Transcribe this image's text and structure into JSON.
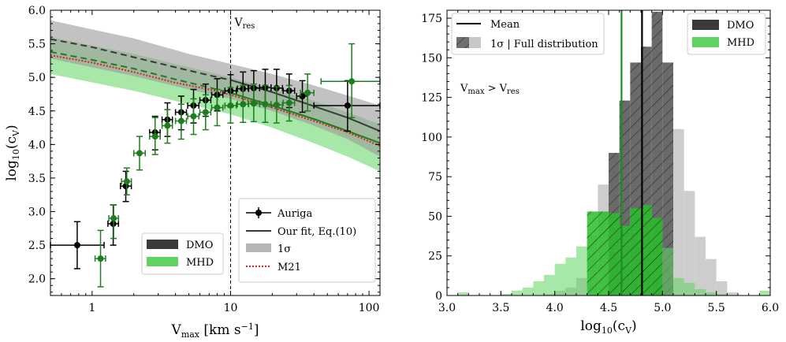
{
  "chart_data": [
    {
      "type": "scatter",
      "xscale": "log",
      "xlim": [
        0.5,
        120
      ],
      "ylim": [
        1.75,
        6.0
      ],
      "xlabel": "V_max [km s^-1]",
      "ylabel": "log10(cV)",
      "annotations": [
        {
          "text": "Vres",
          "x": 10
        }
      ],
      "xticks": [
        {
          "v": 1,
          "label": "1"
        },
        {
          "v": 10,
          "label": "10"
        },
        {
          "v": 100,
          "label": "100"
        }
      ],
      "yticks": [
        2.0,
        2.5,
        3.0,
        3.5,
        4.0,
        4.5,
        5.0,
        5.5,
        6.0
      ],
      "ytick_labels": [
        "2.0",
        "2.5",
        "3.0",
        "3.5",
        "4.0",
        "4.5",
        "5.0",
        "5.5",
        "6.0"
      ],
      "vres": 10,
      "colors": {
        "dmo": "#3a3a3a",
        "mhd": "#1e7d1e",
        "dmo_band": "#9a9a9a",
        "mhd_band": "#5fd35f",
        "m21": "#e02020"
      },
      "series": [
        {
          "name": "Auriga DMO",
          "color": "#000000",
          "points": [
            {
              "x": 0.78,
              "y": 2.5,
              "xlo": 0.5,
              "xhi": 1.22,
              "ylo": 2.15,
              "yhi": 2.85
            },
            {
              "x": 1.42,
              "y": 2.82,
              "xlo": 1.3,
              "xhi": 1.55,
              "ylo": 2.5,
              "yhi": 3.1
            },
            {
              "x": 1.75,
              "y": 3.38,
              "xlo": 1.6,
              "xhi": 1.92,
              "ylo": 3.15,
              "yhi": 3.6
            },
            {
              "x": 2.85,
              "y": 4.18,
              "xlo": 2.6,
              "xhi": 3.1,
              "ylo": 3.92,
              "yhi": 4.42
            },
            {
              "x": 3.5,
              "y": 4.37,
              "xlo": 3.2,
              "xhi": 3.8,
              "ylo": 4.12,
              "yhi": 4.62
            },
            {
              "x": 4.4,
              "y": 4.48,
              "xlo": 4.0,
              "xhi": 4.8,
              "ylo": 4.22,
              "yhi": 4.72
            },
            {
              "x": 5.4,
              "y": 4.58,
              "xlo": 4.9,
              "xhi": 5.9,
              "ylo": 4.32,
              "yhi": 4.82
            },
            {
              "x": 6.6,
              "y": 4.66,
              "xlo": 6.0,
              "xhi": 7.2,
              "ylo": 4.42,
              "yhi": 4.9
            },
            {
              "x": 8.0,
              "y": 4.74,
              "xlo": 7.3,
              "xhi": 8.8,
              "ylo": 4.5,
              "yhi": 4.98
            },
            {
              "x": 10.0,
              "y": 4.8,
              "xlo": 9.1,
              "xhi": 11.0,
              "ylo": 4.56,
              "yhi": 5.04
            },
            {
              "x": 12.3,
              "y": 4.83,
              "xlo": 11.2,
              "xhi": 13.5,
              "ylo": 4.6,
              "yhi": 5.08
            },
            {
              "x": 14.7,
              "y": 4.84,
              "xlo": 13.4,
              "xhi": 16.2,
              "ylo": 4.6,
              "yhi": 5.1
            },
            {
              "x": 17.8,
              "y": 4.85,
              "xlo": 16.2,
              "xhi": 19.6,
              "ylo": 4.6,
              "yhi": 5.12
            },
            {
              "x": 21.5,
              "y": 4.84,
              "xlo": 19.6,
              "xhi": 23.7,
              "ylo": 4.6,
              "yhi": 5.12
            },
            {
              "x": 26.5,
              "y": 4.8,
              "xlo": 24.0,
              "xhi": 29.0,
              "ylo": 4.55,
              "yhi": 5.05
            },
            {
              "x": 33.0,
              "y": 4.72,
              "xlo": 30.0,
              "xhi": 36.0,
              "ylo": 4.48,
              "yhi": 4.95
            },
            {
              "x": 70.0,
              "y": 4.58,
              "xlo": 40.0,
              "xhi": 120.0,
              "ylo": 4.2,
              "yhi": 4.95
            }
          ]
        },
        {
          "name": "Auriga MHD",
          "color": "#1e7d1e",
          "points": [
            {
              "x": 1.15,
              "y": 2.3,
              "xlo": 1.05,
              "xhi": 1.25,
              "ylo": 1.88,
              "yhi": 2.72
            },
            {
              "x": 1.43,
              "y": 2.9,
              "xlo": 1.32,
              "xhi": 1.55,
              "ylo": 2.6,
              "yhi": 3.1
            },
            {
              "x": 1.78,
              "y": 3.45,
              "xlo": 1.63,
              "xhi": 1.92,
              "ylo": 3.25,
              "yhi": 3.65
            },
            {
              "x": 2.2,
              "y": 3.87,
              "xlo": 2.0,
              "xhi": 2.42,
              "ylo": 3.62,
              "yhi": 4.12
            },
            {
              "x": 2.85,
              "y": 4.12,
              "xlo": 2.6,
              "xhi": 3.1,
              "ylo": 3.85,
              "yhi": 4.4
            },
            {
              "x": 3.5,
              "y": 4.28,
              "xlo": 3.2,
              "xhi": 3.8,
              "ylo": 4.02,
              "yhi": 4.52
            },
            {
              "x": 4.4,
              "y": 4.35,
              "xlo": 4.0,
              "xhi": 4.8,
              "ylo": 4.08,
              "yhi": 4.6
            },
            {
              "x": 5.4,
              "y": 4.42,
              "xlo": 4.9,
              "xhi": 5.9,
              "ylo": 4.15,
              "yhi": 4.68
            },
            {
              "x": 6.6,
              "y": 4.48,
              "xlo": 6.0,
              "xhi": 7.2,
              "ylo": 4.22,
              "yhi": 4.74
            },
            {
              "x": 8.0,
              "y": 4.55,
              "xlo": 7.3,
              "xhi": 8.8,
              "ylo": 4.28,
              "yhi": 4.82
            },
            {
              "x": 10.0,
              "y": 4.58,
              "xlo": 9.1,
              "xhi": 11.0,
              "ylo": 4.32,
              "yhi": 4.85
            },
            {
              "x": 12.3,
              "y": 4.6,
              "xlo": 11.2,
              "xhi": 13.5,
              "ylo": 4.33,
              "yhi": 4.88
            },
            {
              "x": 14.7,
              "y": 4.61,
              "xlo": 13.4,
              "xhi": 16.2,
              "ylo": 4.34,
              "yhi": 4.9
            },
            {
              "x": 17.8,
              "y": 4.6,
              "xlo": 16.2,
              "xhi": 19.6,
              "ylo": 4.33,
              "yhi": 4.88
            },
            {
              "x": 21.5,
              "y": 4.59,
              "xlo": 19.6,
              "xhi": 23.7,
              "ylo": 4.32,
              "yhi": 4.86
            },
            {
              "x": 26.5,
              "y": 4.62,
              "xlo": 24.0,
              "xhi": 29.0,
              "ylo": 4.35,
              "yhi": 4.88
            },
            {
              "x": 36.0,
              "y": 4.77,
              "xlo": 32.0,
              "xhi": 40.0,
              "ylo": 4.5,
              "yhi": 5.05
            },
            {
              "x": 75.0,
              "y": 4.94,
              "xlo": 45.0,
              "xhi": 120.0,
              "ylo": 4.4,
              "yhi": 5.5
            }
          ]
        }
      ],
      "fits": {
        "dmo_dashed": [
          [
            0.5,
            5.57
          ],
          [
            1,
            5.45
          ],
          [
            2,
            5.3
          ],
          [
            4,
            5.15
          ],
          [
            7,
            5.03
          ],
          [
            10,
            4.96
          ]
        ],
        "dmo_solid": [
          [
            10,
            4.96
          ],
          [
            20,
            4.78
          ],
          [
            40,
            4.57
          ],
          [
            70,
            4.4
          ],
          [
            120,
            4.2
          ]
        ],
        "mhd_dashed": [
          [
            0.5,
            5.38
          ],
          [
            1,
            5.26
          ],
          [
            2,
            5.13
          ],
          [
            4,
            4.97
          ],
          [
            7,
            4.85
          ],
          [
            10,
            4.77
          ]
        ],
        "mhd_solid": [
          [
            10,
            4.77
          ],
          [
            20,
            4.58
          ],
          [
            40,
            4.38
          ],
          [
            70,
            4.2
          ],
          [
            120,
            4.02
          ]
        ],
        "m21": [
          [
            0.5,
            5.33
          ],
          [
            1,
            5.22
          ],
          [
            2,
            5.08
          ],
          [
            4,
            4.92
          ],
          [
            7,
            4.82
          ],
          [
            10,
            4.74
          ],
          [
            20,
            4.55
          ],
          [
            40,
            4.35
          ],
          [
            70,
            4.18
          ],
          [
            120,
            3.98
          ]
        ]
      },
      "bands": {
        "dmo": {
          "upper": [
            [
              0.5,
              5.85
            ],
            [
              2,
              5.58
            ],
            [
              5,
              5.35
            ],
            [
              10,
              5.2
            ],
            [
              20,
              5.05
            ],
            [
              40,
              4.88
            ],
            [
              70,
              4.73
            ],
            [
              120,
              4.58
            ]
          ],
          "lower": [
            [
              0.5,
              5.28
            ],
            [
              2,
              5.02
            ],
            [
              5,
              4.82
            ],
            [
              10,
              4.68
            ],
            [
              20,
              4.5
            ],
            [
              40,
              4.28
            ],
            [
              70,
              4.08
            ],
            [
              120,
              3.82
            ]
          ]
        },
        "mhd": {
          "upper": [
            [
              0.5,
              5.6
            ],
            [
              2,
              5.35
            ],
            [
              5,
              5.15
            ],
            [
              10,
              5.0
            ],
            [
              20,
              4.83
            ],
            [
              40,
              4.65
            ],
            [
              70,
              4.48
            ],
            [
              120,
              4.3
            ]
          ],
          "lower": [
            [
              0.5,
              5.05
            ],
            [
              2,
              4.8
            ],
            [
              5,
              4.6
            ],
            [
              10,
              4.45
            ],
            [
              20,
              4.25
            ],
            [
              40,
              4.02
            ],
            [
              70,
              3.82
            ],
            [
              120,
              3.6
            ]
          ]
        }
      },
      "legend_marker": {
        "label": "Auriga"
      },
      "legend_lines": [
        {
          "label": "Our fit, Eq.(10)",
          "style": "solid"
        },
        {
          "label": "1σ",
          "style": "band"
        },
        {
          "label": "M21",
          "style": "dotted"
        }
      ],
      "legend_colors": [
        {
          "label": "DMO",
          "color": "#3a3a3a"
        },
        {
          "label": "MHD",
          "color": "#5fd35f"
        }
      ]
    },
    {
      "type": "bar",
      "subtype": "histogram",
      "xlim": [
        3.0,
        6.0
      ],
      "ylim": [
        0,
        180
      ],
      "xlabel": "log10(cV)",
      "xticks": [
        3.0,
        3.5,
        4.0,
        4.5,
        5.0,
        5.5,
        6.0
      ],
      "xtick_labels": [
        "3.0",
        "3.5",
        "4.0",
        "4.5",
        "5.0",
        "5.5",
        "6.0"
      ],
      "yticks": [
        0,
        25,
        50,
        75,
        100,
        125,
        150,
        175
      ],
      "ytick_labels": [
        "0",
        "25",
        "50",
        "75",
        "100",
        "125",
        "150",
        "175"
      ],
      "annotation": "Vmax > Vres",
      "dmo": {
        "bins": [
          3.9,
          4.0,
          4.1,
          4.2,
          4.3,
          4.4,
          4.5,
          4.6,
          4.7,
          4.8,
          4.9,
          5.0,
          5.1,
          5.2,
          5.3,
          5.4,
          5.5,
          5.6,
          5.7
        ],
        "counts": [
          1,
          3,
          5,
          11,
          38,
          70,
          90,
          123,
          147,
          157,
          179,
          147,
          105,
          66,
          37,
          23,
          9,
          2
        ],
        "mean": 4.81,
        "sigma_range": [
          4.52,
          5.09
        ]
      },
      "mhd": {
        "bins": [
          3.1,
          3.2,
          3.3,
          3.4,
          3.5,
          3.6,
          3.7,
          3.8,
          3.9,
          4.0,
          4.1,
          4.2,
          4.3,
          4.4,
          4.5,
          4.6,
          4.7,
          4.8,
          4.9,
          5.0,
          5.1,
          5.2,
          5.3,
          5.4,
          5.5,
          5.6,
          5.7,
          5.8,
          5.9,
          6.0
        ],
        "counts": [
          2,
          0,
          0,
          0,
          1,
          3,
          5,
          9,
          13,
          20,
          24,
          31,
          53,
          53,
          52,
          44,
          55,
          57,
          49,
          30,
          11,
          8,
          4,
          2,
          1,
          0,
          0,
          0,
          3
        ],
        "mean": 4.62,
        "sigma_range": [
          4.28,
          4.97
        ]
      },
      "legend_lines": [
        {
          "label": "Mean",
          "style": "line"
        },
        {
          "label": "1σ | Full distribution",
          "style": "hatch"
        }
      ],
      "legend_colors": [
        {
          "label": "DMO",
          "color": "#3a3a3a"
        },
        {
          "label": "MHD",
          "color": "#5fd35f"
        }
      ]
    }
  ]
}
